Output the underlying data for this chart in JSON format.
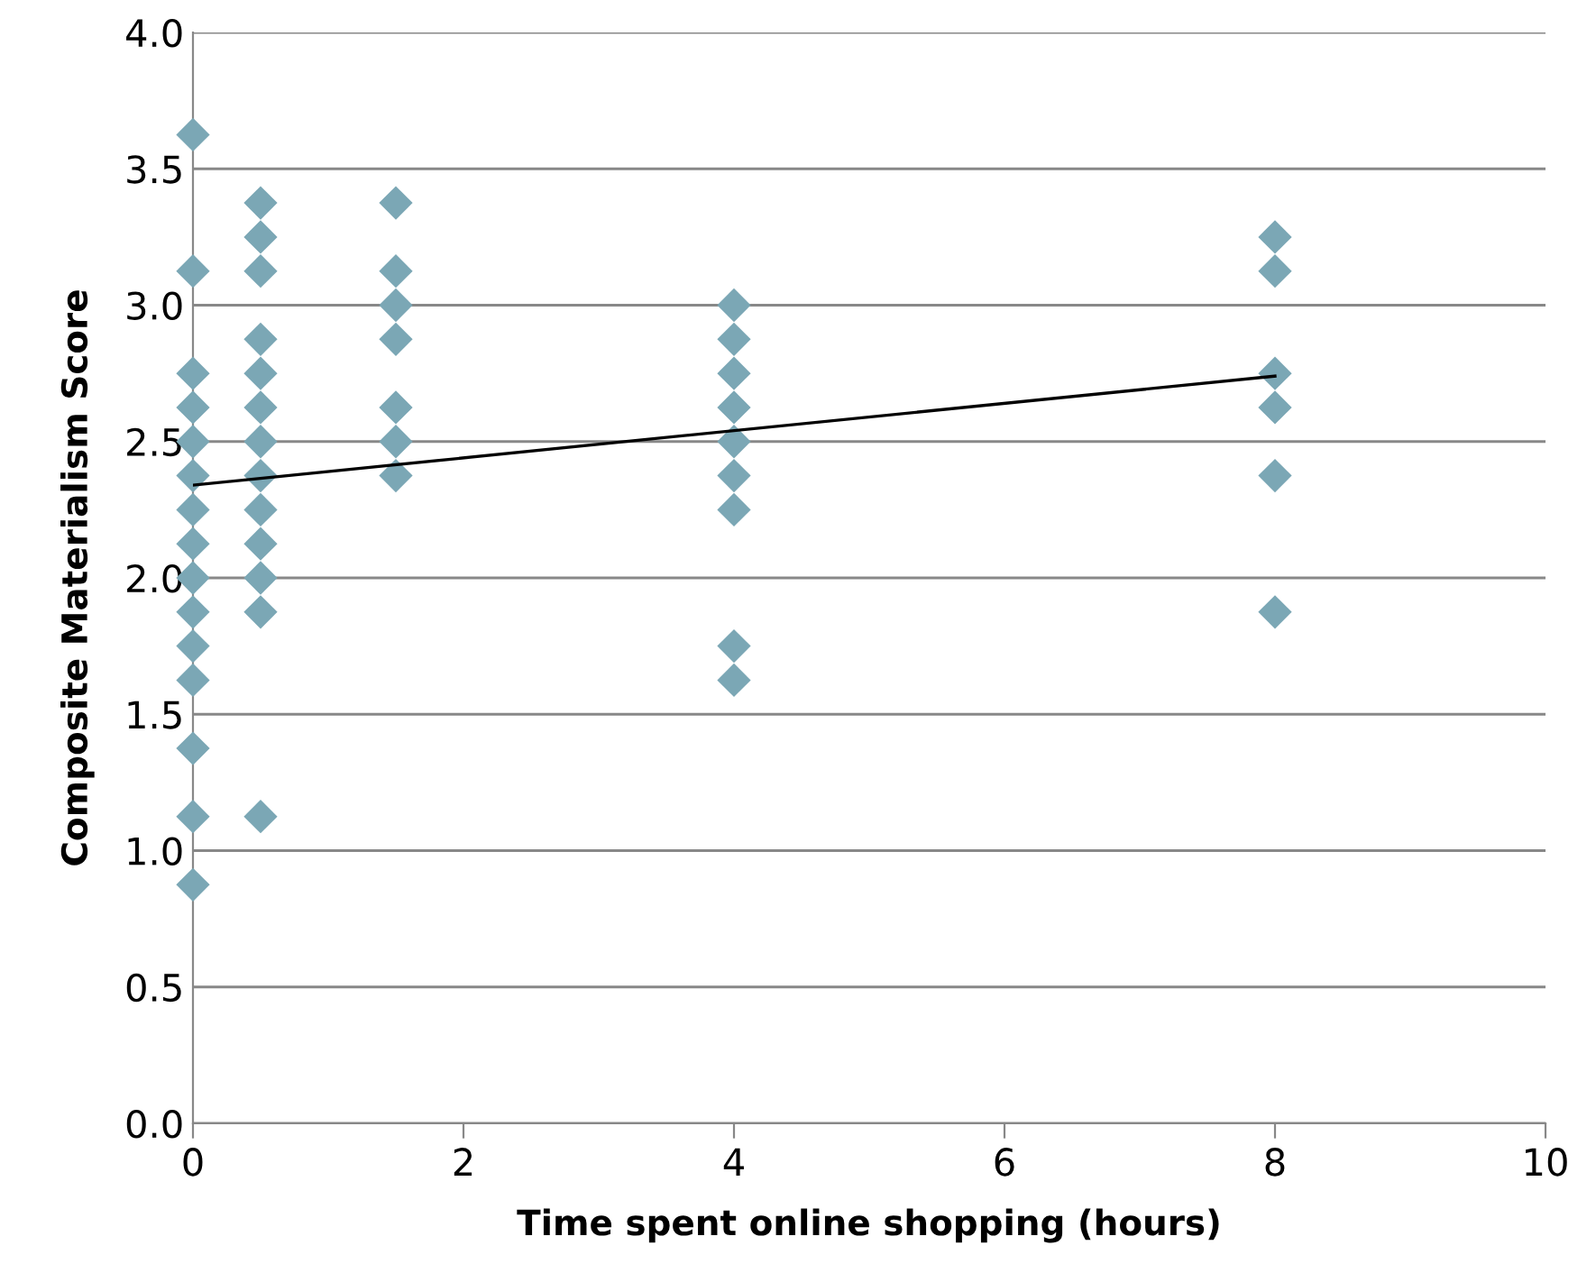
{
  "chart_data": {
    "type": "scatter",
    "xlabel": "Time spent online shopping (hours)",
    "ylabel": "Composite Materialism Score",
    "xlim": [
      0,
      10
    ],
    "xticks": [
      0,
      2,
      4,
      6,
      8,
      10
    ],
    "ylim": [
      0,
      4
    ],
    "yticks": [
      {
        "value": 0,
        "label": "0.0"
      },
      {
        "value": 0.5,
        "label": "0.5"
      },
      {
        "value": 1,
        "label": "1.0"
      },
      {
        "value": 1.5,
        "label": "1.5"
      },
      {
        "value": 2,
        "label": "2.0"
      },
      {
        "value": 2.5,
        "label": "2.5"
      },
      {
        "value": 3,
        "label": "3.0"
      },
      {
        "value": 3.5,
        "label": "3.5"
      },
      {
        "value": 4,
        "label": "4.0"
      }
    ],
    "grid": "y",
    "legend": false,
    "series": [
      {
        "marker": "diamond",
        "color": "#7ba7b5",
        "x": [
          0,
          0,
          0,
          0,
          0,
          0,
          0,
          0,
          0,
          0,
          0,
          0,
          0,
          0,
          0,
          0.5,
          0.5,
          0.5,
          0.5,
          0.5,
          0.5,
          0.5,
          0.5,
          0.5,
          0.5,
          0.5,
          0.5,
          0.5,
          1.5,
          1.5,
          1.5,
          1.5,
          1.5,
          1.5,
          1.5,
          4,
          4,
          4,
          4,
          4,
          4,
          4,
          4,
          4,
          8,
          8,
          8,
          8,
          8,
          8
        ],
        "values": [
          3.625,
          3.125,
          2.75,
          2.625,
          2.5,
          2.375,
          2.25,
          2.125,
          2.0,
          1.875,
          1.75,
          1.625,
          1.375,
          1.125,
          0.875,
          3.375,
          3.25,
          3.125,
          2.875,
          2.75,
          2.625,
          2.5,
          2.375,
          2.25,
          2.125,
          2.0,
          1.875,
          1.125,
          3.375,
          3.125,
          3.0,
          2.875,
          2.625,
          2.5,
          2.375,
          3.0,
          2.875,
          2.75,
          2.625,
          2.5,
          2.375,
          2.25,
          1.75,
          1.625,
          3.25,
          3.125,
          2.75,
          2.625,
          2.375,
          1.875
        ]
      },
      {
        "type": "line",
        "marker": "none",
        "color": "#000000",
        "x": [
          0,
          8
        ],
        "values": [
          2.34,
          2.74
        ]
      }
    ]
  }
}
